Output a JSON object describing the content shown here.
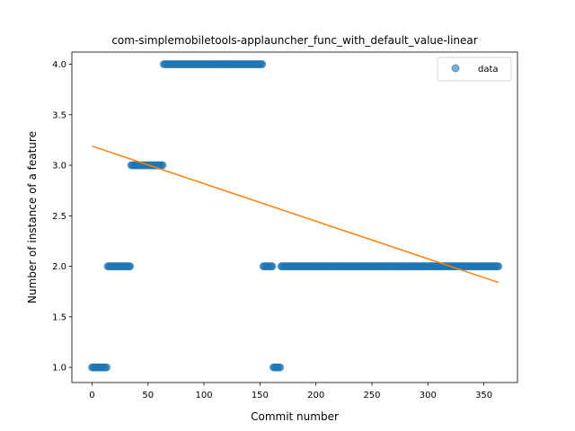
{
  "chart_data": {
    "type": "scatter",
    "title": "com-simplemobiletools-applauncher_func_with_default_value-linear",
    "xlabel": "Commit number",
    "ylabel": "Number of instance of a feature",
    "xlim": [
      -18,
      380
    ],
    "ylim": [
      0.85,
      4.12
    ],
    "xticks": [
      0,
      50,
      100,
      150,
      200,
      250,
      300,
      350
    ],
    "yticks": [
      1.0,
      1.5,
      2.0,
      2.5,
      3.0,
      3.5,
      4.0
    ],
    "ytick_labels": [
      "1.0",
      "1.5",
      "2.0",
      "2.5",
      "3.0",
      "3.5",
      "4.0"
    ],
    "grid": false,
    "legend": {
      "position": "top-right",
      "entries": [
        "data"
      ]
    },
    "colors": {
      "data": "#1f77b4",
      "fit": "#ff7f0e"
    },
    "series": [
      {
        "name": "data",
        "kind": "scatter",
        "segments": [
          {
            "x_start": 0,
            "x_end": 13,
            "y": 1.0
          },
          {
            "x_start": 14,
            "x_end": 34,
            "y": 2.0
          },
          {
            "x_start": 35,
            "x_end": 63,
            "y": 3.0
          },
          {
            "x_start": 64,
            "x_end": 152,
            "y": 4.0
          },
          {
            "x_start": 153,
            "x_end": 161,
            "y": 2.0
          },
          {
            "x_start": 162,
            "x_end": 168,
            "y": 1.0
          },
          {
            "x_start": 169,
            "x_end": 363,
            "y": 2.0
          }
        ]
      },
      {
        "kind": "line",
        "x": [
          0,
          363
        ],
        "y": [
          3.19,
          1.84
        ]
      }
    ]
  }
}
